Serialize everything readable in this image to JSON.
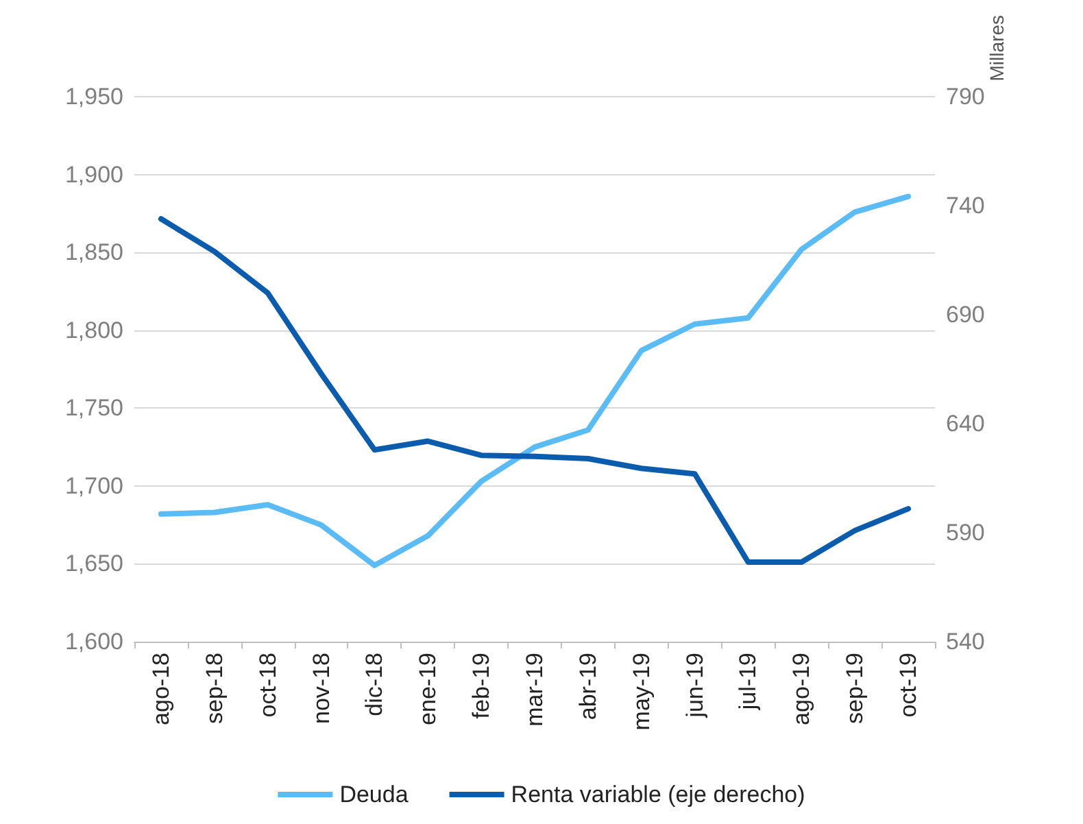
{
  "chart_data": {
    "type": "line",
    "categories": [
      "ago-18",
      "sep-18",
      "oct-18",
      "nov-18",
      "dic-18",
      "ene-19",
      "feb-19",
      "mar-19",
      "abr-19",
      "may-19",
      "jun-19",
      "jul-19",
      "ago-19",
      "sep-19",
      "oct-19"
    ],
    "series": [
      {
        "name": "Deuda",
        "color": "#5bbcf5",
        "values": [
          1682,
          1683,
          1688,
          1675,
          1649,
          1668,
          1703,
          1725,
          1736,
          1787,
          1804,
          1808,
          1852,
          1876,
          1886
        ]
      },
      {
        "name": "Renta variable (eje derecho)",
        "color": "#0b5cad",
        "axis": "y2",
        "values": [
          734,
          719,
          700,
          663,
          628,
          632,
          625.5,
          625,
          624,
          619.5,
          617,
          576.5,
          576.5,
          591,
          601
        ]
      }
    ],
    "ylim": [
      1600,
      1950
    ],
    "yticks": [
      {
        "value": 1600,
        "label": "1,600"
      },
      {
        "value": 1650,
        "label": "1,650"
      },
      {
        "value": 1700,
        "label": "1,700"
      },
      {
        "value": 1750,
        "label": "1,750"
      },
      {
        "value": 1800,
        "label": "1,800"
      },
      {
        "value": 1850,
        "label": "1,850"
      },
      {
        "value": 1900,
        "label": "1,900"
      },
      {
        "value": 1950,
        "label": "1,950"
      }
    ],
    "y2lim": [
      540,
      790
    ],
    "y2ticks": [
      540,
      590,
      640,
      690,
      740,
      790
    ],
    "y2label": "Millares",
    "grid": "y",
    "legend": "bottom",
    "marker": "none",
    "line_style": "solid"
  }
}
